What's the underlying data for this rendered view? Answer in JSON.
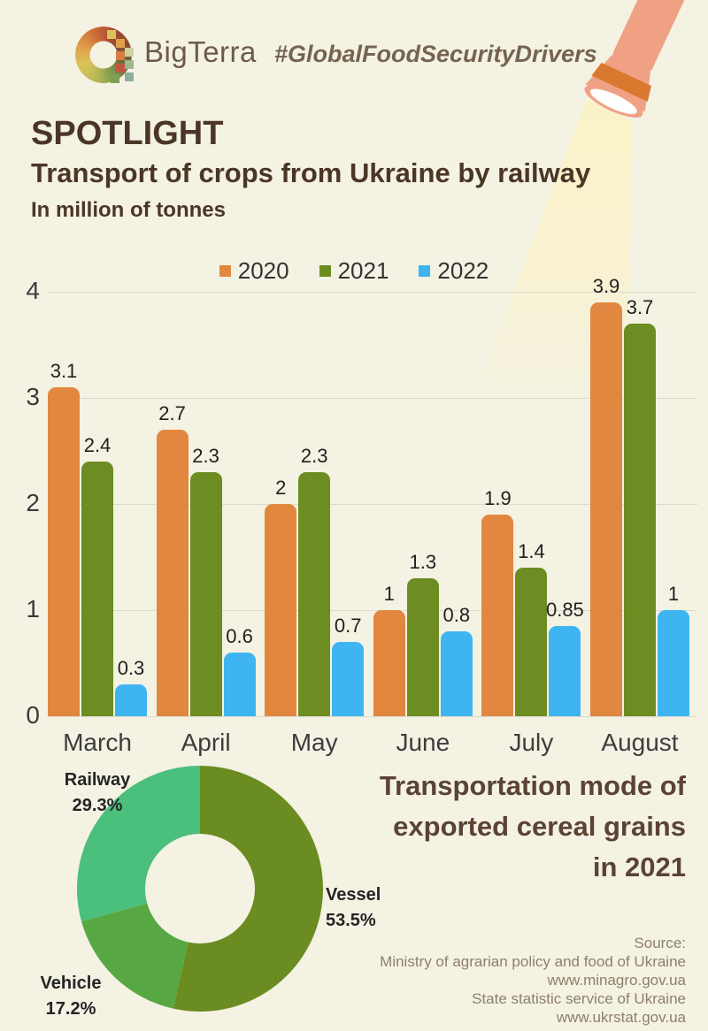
{
  "header": {
    "logo_text": "BigTerra",
    "hashtag": "#GlobalFoodSecurityDrivers"
  },
  "titles": {
    "spotlight": "SPOTLIGHT",
    "main": "Transport of crops from Ukraine by railway",
    "unit": "In million of tonnes"
  },
  "chart_data": [
    {
      "type": "bar",
      "title": "Transport of crops from Ukraine by railway",
      "ylabel": "million tonnes",
      "categories": [
        "March",
        "April",
        "May",
        "June",
        "July",
        "August"
      ],
      "series": [
        {
          "name": "2020",
          "color": "#e2873f",
          "values": [
            3.1,
            2.7,
            2,
            1,
            1.9,
            3.9
          ]
        },
        {
          "name": "2021",
          "color": "#6d8c21",
          "values": [
            2.4,
            2.3,
            2.3,
            1.3,
            1.4,
            3.7
          ]
        },
        {
          "name": "2022",
          "color": "#3eb5f1",
          "values": [
            0.3,
            0.6,
            0.7,
            0.8,
            0.85,
            1
          ]
        }
      ],
      "ylim": [
        0,
        4
      ],
      "yticks": [
        0,
        1,
        2,
        3,
        4
      ],
      "grid": true,
      "legend_position": "top"
    },
    {
      "type": "pie",
      "donut": true,
      "title": "Transportation mode of exported cereal grains in 2021",
      "start": "top, clockwise",
      "slices": [
        {
          "label": "Vessel",
          "value": 53.5,
          "display": "53.5%",
          "color": "#6b8c21"
        },
        {
          "label": "Vehicle",
          "value": 17.2,
          "display": "17.2%",
          "color": "#57a843"
        },
        {
          "label": "Railway",
          "value": 29.3,
          "display": "29.3%",
          "color": "#4bbf7c"
        }
      ]
    }
  ],
  "pie_section": {
    "title_lines": [
      "Transportation mode of",
      "exported cereal grains",
      "in 2021"
    ]
  },
  "source": {
    "lines": [
      "Source:",
      "Ministry of agrarian policy and food of Ukraine",
      "www.minagro.gov.ua",
      "State statistic service of Ukraine",
      "www.ukrstat.gov.ua"
    ]
  },
  "colors": {
    "background": "#f4f2e3",
    "title_brown": "#4b3626",
    "flashlight_body": "#f0a184",
    "flashlight_band": "#d9782f",
    "beam": "#fbf2c4"
  },
  "icons": {
    "logo": "bigterra-ring-logo",
    "illustration": "flashlight-with-beam"
  }
}
